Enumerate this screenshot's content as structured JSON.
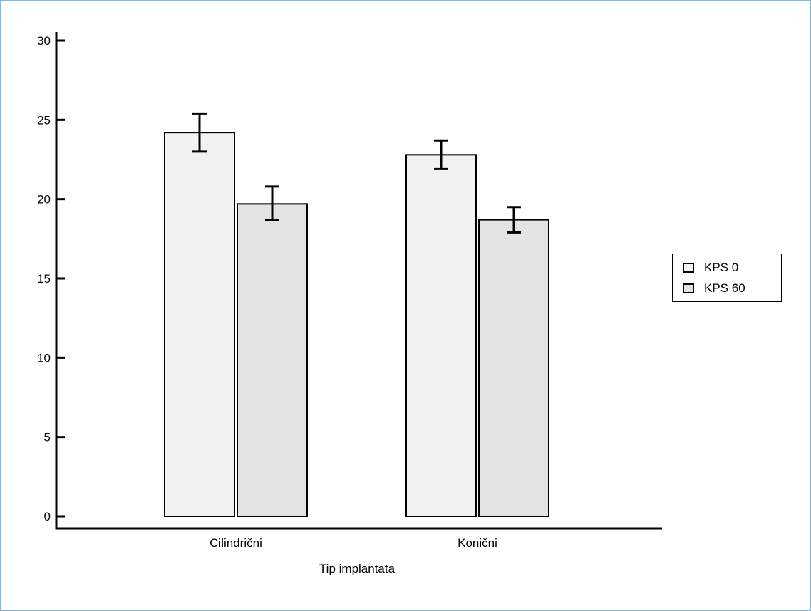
{
  "chart_data": {
    "type": "bar",
    "title": "",
    "xlabel": "Tip implantata",
    "ylabel": "",
    "ylim": [
      0,
      30
    ],
    "yticks": [
      0,
      5,
      10,
      15,
      20,
      25,
      30
    ],
    "categories": [
      "Cilindrični",
      "Konični"
    ],
    "series": [
      {
        "name": "KPS 0",
        "values": [
          24.2,
          22.8
        ],
        "error_low": [
          23.0,
          21.9
        ],
        "error_high": [
          25.4,
          23.7
        ],
        "color": "#f2f2f2"
      },
      {
        "name": "KPS 60",
        "values": [
          19.7,
          18.7
        ],
        "error_low": [
          18.7,
          17.9
        ],
        "error_high": [
          20.8,
          19.5
        ],
        "color": "#e3e3e3"
      }
    ],
    "grid": false,
    "legend_position": "right"
  }
}
